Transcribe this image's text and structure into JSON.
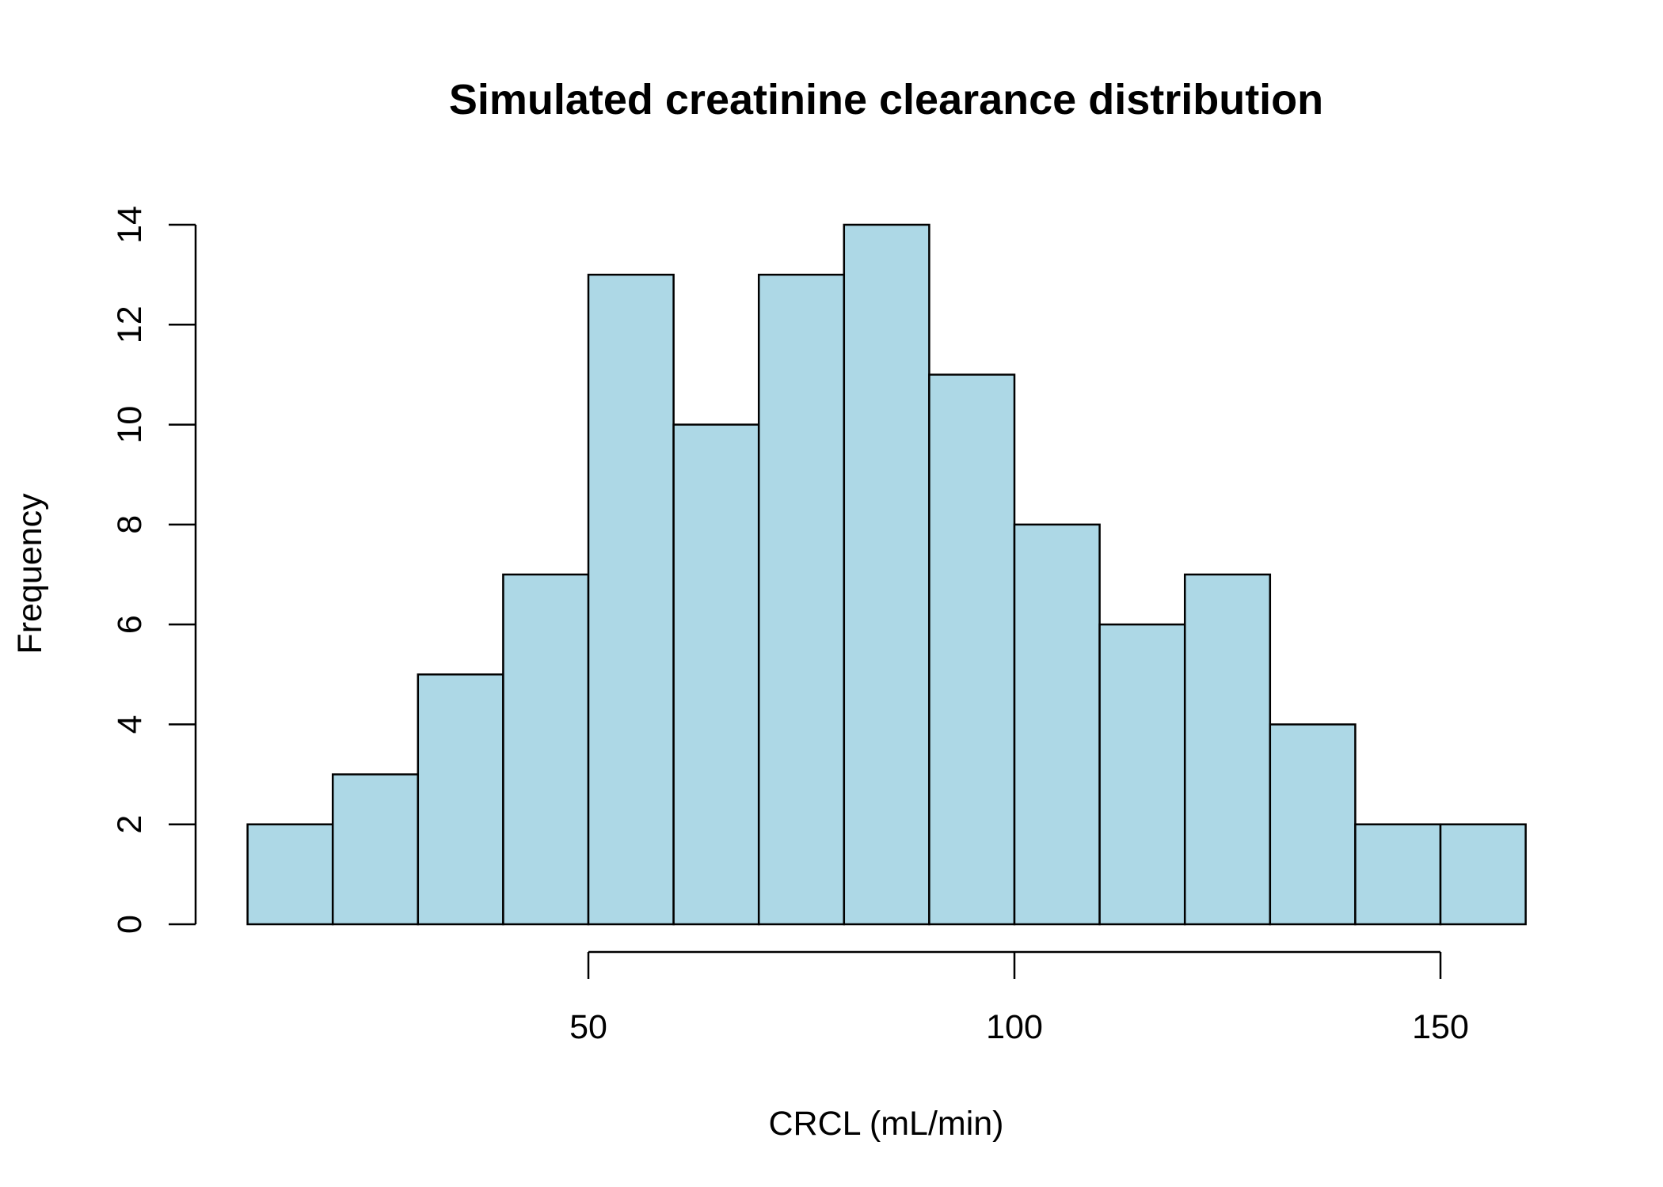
{
  "chart_data": {
    "type": "bar",
    "subtype": "histogram",
    "title": "Simulated creatinine clearance distribution",
    "xlabel": "CRCL (mL/min)",
    "ylabel": "Frequency",
    "bin_edges": [
      10,
      20,
      30,
      40,
      50,
      60,
      70,
      80,
      90,
      100,
      110,
      120,
      130,
      140,
      150,
      160
    ],
    "values": [
      2,
      3,
      5,
      7,
      13,
      10,
      13,
      14,
      11,
      8,
      6,
      7,
      4,
      2,
      2
    ],
    "xlim": [
      10,
      160
    ],
    "ylim": [
      0,
      14
    ],
    "x_ticks": [
      50,
      100,
      150
    ],
    "y_ticks": [
      0,
      2,
      4,
      6,
      8,
      10,
      12,
      14
    ],
    "bar_color": "#add8e6",
    "border_color": "#000000",
    "grid": false,
    "legend": "none"
  }
}
